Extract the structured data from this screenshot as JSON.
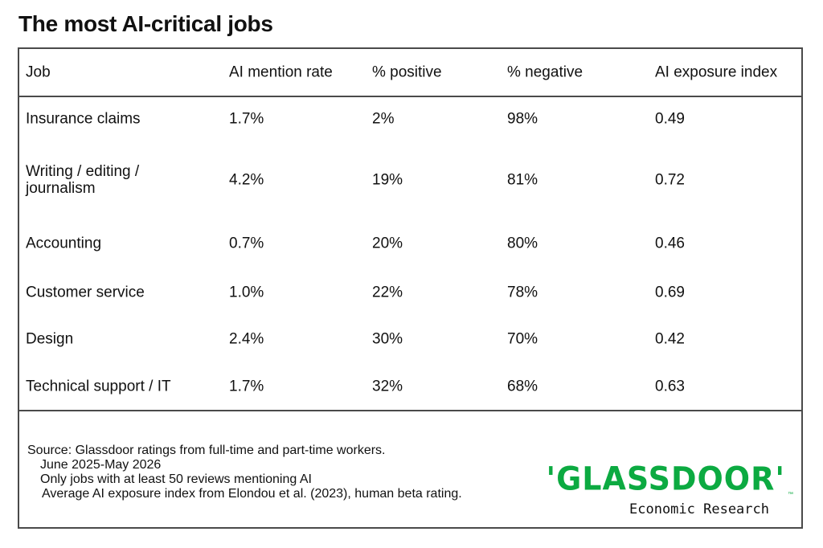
{
  "title": "The most AI-critical jobs",
  "chart_data": {
    "type": "table",
    "columns": [
      "Job",
      "AI mention rate",
      "% positive",
      "% negative",
      "AI exposure index"
    ],
    "rows": [
      [
        "Insurance claims",
        "1.7%",
        "2%",
        "98%",
        "0.49"
      ],
      [
        "Writing / editing / journalism",
        "4.2%",
        "19%",
        "81%",
        "0.72"
      ],
      [
        "Accounting",
        "0.7%",
        "20%",
        "80%",
        "0.46"
      ],
      [
        "Customer service",
        "1.0%",
        "22%",
        "78%",
        "0.69"
      ],
      [
        "Design",
        "2.4%",
        "30%",
        "70%",
        "0.42"
      ],
      [
        "Technical support / IT",
        "1.7%",
        "32%",
        "68%",
        "0.63"
      ]
    ]
  },
  "footer": {
    "source_lines": [
      "Source: Glassdoor ratings from full-time and part-time workers.",
      "June 2025-May 2026",
      "Only jobs with at least 50 reviews mentioning AI",
      "Average AI exposure index from Elondou et al. (2023), human beta rating."
    ]
  },
  "logo": {
    "wordmark": "'GLASSDOOR'",
    "trademark": "™",
    "subtitle": "Economic Research",
    "color": "#0caa41"
  }
}
